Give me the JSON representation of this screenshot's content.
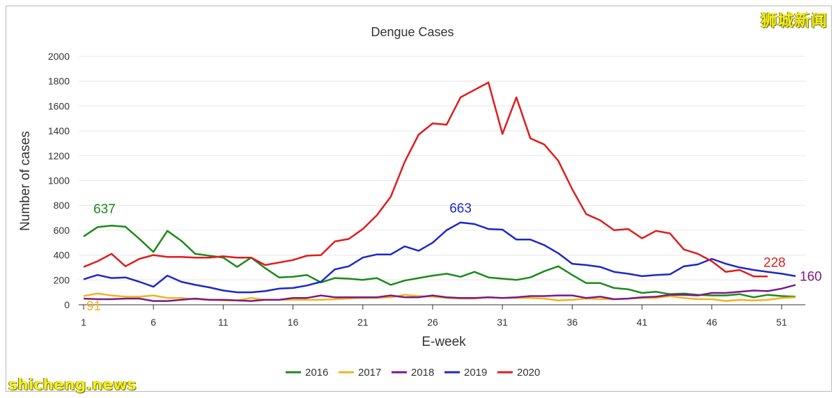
{
  "watermarks": {
    "top_right": "狮城新闻",
    "bottom_left": "shicheng.news"
  },
  "chart_data": {
    "type": "line",
    "title": "Dengue Cases",
    "xlabel": "E-week",
    "ylabel": "Number of cases",
    "xlim": [
      1,
      52
    ],
    "ylim": [
      0,
      2000
    ],
    "x_ticks": [
      1,
      6,
      11,
      16,
      21,
      26,
      31,
      36,
      41,
      46,
      51
    ],
    "y_ticks": [
      0,
      200,
      400,
      600,
      800,
      1000,
      1200,
      1400,
      1600,
      1800,
      2000
    ],
    "grid": "horizontal",
    "legend_position": "bottom",
    "series": [
      {
        "name": "2016",
        "color": "#1b8a1b",
        "start_week": 1,
        "values": [
          550,
          625,
          637,
          628,
          530,
          425,
          595,
          515,
          410,
          395,
          380,
          305,
          380,
          295,
          220,
          225,
          240,
          180,
          215,
          210,
          200,
          215,
          160,
          195,
          215,
          235,
          250,
          225,
          265,
          220,
          210,
          200,
          220,
          270,
          310,
          240,
          175,
          175,
          135,
          125,
          95,
          105,
          85,
          90,
          80,
          75,
          75,
          85,
          60,
          80,
          70,
          65
        ]
      },
      {
        "name": "2017",
        "color": "#f2b31c",
        "start_week": 1,
        "values": [
          70,
          91,
          75,
          65,
          65,
          75,
          55,
          55,
          45,
          40,
          35,
          35,
          55,
          40,
          40,
          40,
          40,
          40,
          45,
          50,
          55,
          55,
          60,
          80,
          70,
          65,
          55,
          50,
          50,
          60,
          55,
          55,
          55,
          50,
          35,
          40,
          50,
          45,
          45,
          50,
          55,
          55,
          70,
          55,
          45,
          45,
          30,
          40,
          35,
          40,
          55,
          60
        ]
      },
      {
        "name": "2018",
        "color": "#7a1a86",
        "start_week": 1,
        "values": [
          50,
          45,
          45,
          50,
          50,
          30,
          30,
          40,
          50,
          40,
          40,
          35,
          30,
          40,
          40,
          55,
          55,
          75,
          60,
          60,
          60,
          60,
          75,
          60,
          60,
          75,
          60,
          55,
          55,
          60,
          55,
          60,
          70,
          70,
          75,
          75,
          55,
          65,
          45,
          50,
          60,
          65,
          80,
          80,
          75,
          95,
          95,
          105,
          115,
          110,
          130,
          160
        ]
      },
      {
        "name": "2019",
        "color": "#1c27c8",
        "start_week": 1,
        "values": [
          205,
          240,
          215,
          220,
          185,
          145,
          235,
          185,
          160,
          140,
          115,
          100,
          100,
          110,
          130,
          135,
          155,
          185,
          285,
          310,
          380,
          405,
          405,
          470,
          435,
          500,
          600,
          663,
          650,
          610,
          605,
          525,
          525,
          480,
          415,
          330,
          320,
          305,
          265,
          250,
          230,
          240,
          245,
          310,
          325,
          370,
          330,
          300,
          280,
          265,
          250,
          230
        ]
      },
      {
        "name": "2020",
        "color": "#e01b1b",
        "start_week": 1,
        "values": [
          305,
          350,
          410,
          310,
          370,
          400,
          385,
          385,
          380,
          380,
          390,
          380,
          380,
          320,
          340,
          360,
          395,
          400,
          510,
          530,
          610,
          720,
          870,
          1150,
          1370,
          1460,
          1450,
          1670,
          1730,
          1790,
          1375,
          1670,
          1340,
          1290,
          1160,
          930,
          730,
          680,
          600,
          610,
          535,
          595,
          575,
          445,
          410,
          350,
          265,
          280,
          228,
          228
        ]
      }
    ],
    "annotations": [
      {
        "text": "637",
        "series": "2016",
        "week": 3,
        "value": 637
      },
      {
        "text": "91",
        "series": "2017",
        "week": 2,
        "value": 91
      },
      {
        "text": "663",
        "series": "2019",
        "week": 28,
        "value": 663
      },
      {
        "text": "228",
        "series": "2020",
        "week": 50,
        "value": 228
      },
      {
        "text": "160",
        "series": "2018",
        "week": 52,
        "value": 160
      }
    ]
  }
}
